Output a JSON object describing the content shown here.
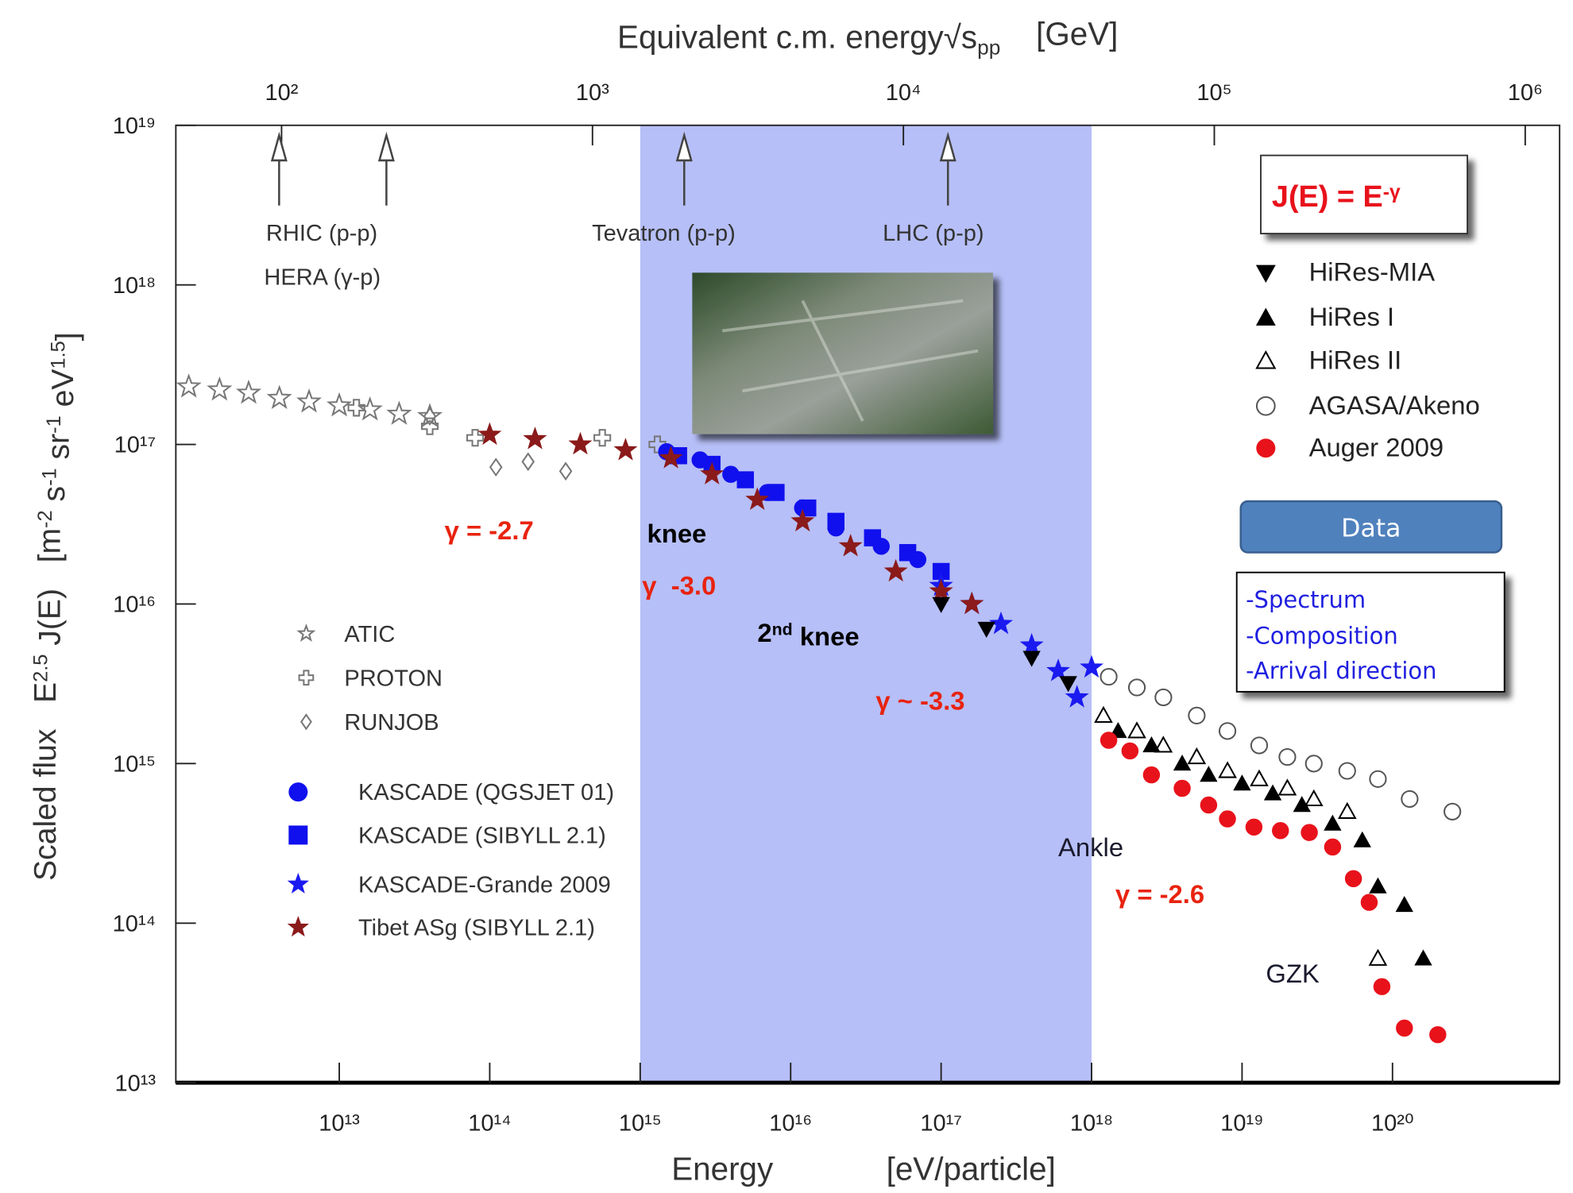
{
  "chart_data": {
    "type": "scatter",
    "title": [
      {
        "text": "Equivalent c.m. energy"
      },
      {
        "text": "√s"
      },
      {
        "text": "pp",
        "sub": true
      },
      {
        "text": "    [GeV]"
      }
    ],
    "x_label": [
      "Energy",
      "[eV/particle]"
    ],
    "y_label": [
      {
        "text": "Scaled flux   E"
      },
      {
        "text": "2.5",
        "sup": true
      },
      {
        "text": " J(E)   [m"
      },
      {
        "text": "-2",
        "sup": true
      },
      {
        "text": " s"
      },
      {
        "text": "-1",
        "sup": true
      },
      {
        "text": " sr"
      },
      {
        "text": "-1",
        "sup": true
      },
      {
        "text": " eV"
      },
      {
        "text": "1.5",
        "sup": true
      },
      {
        "text": "]"
      }
    ],
    "log_x": true,
    "log_y": true,
    "xlim": [
      820000000000.0,
      1.29e+21
    ],
    "ylim": [
      10000000000000.0,
      1e+19
    ],
    "x2lim": [
      45.7,
      1290000.0
    ],
    "xticks": [
      {
        "value": 10000000000000.0,
        "label": "10¹³"
      },
      {
        "value": 100000000000000.0,
        "label": "10¹⁴"
      },
      {
        "value": 1000000000000000.0,
        "label": "10¹⁵"
      },
      {
        "value": 1e+16,
        "label": "10¹⁶"
      },
      {
        "value": 1e+17,
        "label": "10¹⁷"
      },
      {
        "value": 1e+18,
        "label": "10¹⁸"
      },
      {
        "value": 1e+19,
        "label": "10¹⁹"
      },
      {
        "value": 1e+20,
        "label": "10²⁰"
      }
    ],
    "yticks": [
      {
        "value": 10000000000000.0,
        "label": "10¹³"
      },
      {
        "value": 100000000000000.0,
        "label": "10¹⁴"
      },
      {
        "value": 1000000000000000.0,
        "label": "10¹⁵"
      },
      {
        "value": 1e+16,
        "label": "10¹⁶"
      },
      {
        "value": 1e+17,
        "label": "10¹⁷"
      },
      {
        "value": 1e+18,
        "label": "10¹⁸"
      },
      {
        "value": 1e+19,
        "label": "10¹⁹"
      }
    ],
    "x2ticks": [
      {
        "value": 100,
        "label": "10²"
      },
      {
        "value": 1000,
        "label": "10³"
      },
      {
        "value": 10000,
        "label": "10⁴"
      },
      {
        "value": 100000,
        "label": "10⁵"
      },
      {
        "value": 1000000,
        "label": "10⁶"
      }
    ],
    "highlight_range": [
      1000000000000000.0,
      1e+18
    ],
    "highlight_color": "#b6bff7",
    "series": [
      {
        "name": "ATIC",
        "legend": "left",
        "marker": "star",
        "filled": false,
        "color": "#777777",
        "x": [
          1000000000000.0,
          1600000000000.0,
          2500000000000.0,
          4000000000000.0,
          6300000000000.0,
          10000000000000.0,
          16000000000000.0,
          25000000000000.0,
          40000000000000.0
        ],
        "values": [
          2.3e+17,
          2.2e+17,
          2.1e+17,
          1.95e+17,
          1.85e+17,
          1.75e+17,
          1.65e+17,
          1.55e+17,
          1.5e+17
        ]
      },
      {
        "name": "PROTON",
        "legend": "left",
        "marker": "cross",
        "filled": false,
        "color": "#777777",
        "x": [
          13000000000000.0,
          40000000000000.0,
          80000000000000.0,
          560000000000000.0,
          1300000000000000.0
        ],
        "values": [
          1.7e+17,
          1.3e+17,
          1.1e+17,
          1.1e+17,
          1e+17
        ]
      },
      {
        "name": "RUNJOB",
        "legend": "left",
        "marker": "diamond",
        "filled": false,
        "color": "#777777",
        "x": [
          40000000000000.0,
          110000000000000.0,
          180000000000000.0,
          320000000000000.0
        ],
        "values": [
          1.5e+17,
          7.2e+16,
          7.8e+16,
          6.8e+16
        ]
      },
      {
        "name": "KASCADE (QGSJET 01)",
        "legend": "left",
        "marker": "circle",
        "filled": true,
        "color": "#1010ee",
        "x": [
          1500000000000000.0,
          2500000000000000.0,
          4000000000000000.0,
          7000000000000000.0,
          1.2e+16,
          2e+16,
          4e+16,
          7e+16
        ],
        "values": [
          9e+16,
          8e+16,
          6.5e+16,
          5e+16,
          4e+16,
          3e+16,
          2.3e+16,
          1.9e+16
        ]
      },
      {
        "name": "KASCADE (SIBYLL 2.1)",
        "legend": "left",
        "marker": "square",
        "filled": true,
        "color": "#1010ee",
        "x": [
          1800000000000000.0,
          3000000000000000.0,
          5000000000000000.0,
          8000000000000000.0,
          1.3e+16,
          2e+16,
          3.5e+16,
          6e+16,
          1e+17
        ],
        "values": [
          8.5e+16,
          7.5e+16,
          6e+16,
          5e+16,
          4e+16,
          3.3e+16,
          2.6e+16,
          2.1e+16,
          1.6e+16
        ]
      },
      {
        "name": "KASCADE-Grande 2009",
        "legend": "left",
        "marker": "star",
        "filled": true,
        "color": "#1a1af0",
        "x": [
          1e+17,
          1.6e+17,
          2.5e+17,
          4e+17,
          6e+17,
          8e+17,
          1e+18
        ],
        "values": [
          1.3e+16,
          1e+16,
          7500000000000000.0,
          5500000000000000.0,
          3800000000000000.0,
          2600000000000000.0,
          4000000000000000.0
        ]
      },
      {
        "name": "Tibet ASg (SIBYLL 2.1)",
        "legend": "left",
        "marker": "star",
        "filled": true,
        "color": "#8b1a1a",
        "x": [
          100000000000000.0,
          200000000000000.0,
          400000000000000.0,
          800000000000000.0,
          1600000000000000.0,
          3000000000000000.0,
          6000000000000000.0,
          1.2e+16,
          2.5e+16,
          5e+16,
          1e+17,
          1.6e+17
        ],
        "values": [
          1.15e+17,
          1.08e+17,
          1e+17,
          9.2e+16,
          8.2e+16,
          6.5e+16,
          4.5e+16,
          3.3e+16,
          2.3e+16,
          1.6e+16,
          1.2e+16,
          1e+16
        ]
      },
      {
        "name": "HiRes-MIA",
        "legend": "right",
        "marker": "triangle-down",
        "filled": true,
        "color": "#000000",
        "x": [
          1e+17,
          2e+17,
          4e+17,
          7e+17
        ],
        "values": [
          1e+16,
          7000000000000000.0,
          4600000000000000.0,
          3200000000000000.0
        ]
      },
      {
        "name": "HiRes I",
        "legend": "right",
        "marker": "triangle-up",
        "filled": true,
        "color": "#000000",
        "x": [
          1.5e+18,
          2.5e+18,
          4e+18,
          6e+18,
          1e+19,
          1.6e+19,
          2.5e+19,
          4e+19,
          6.3e+19,
          8e+19,
          1.2e+20,
          1.6e+20
        ],
        "values": [
          1600000000000000.0,
          1300000000000000.0,
          1000000000000000.0,
          850000000000000.0,
          750000000000000.0,
          650000000000000.0,
          550000000000000.0,
          420000000000000.0,
          330000000000000.0,
          170000000000000.0,
          130000000000000.0,
          60000000000000.0
        ]
      },
      {
        "name": "HiRes II",
        "legend": "right",
        "marker": "triangle-up",
        "filled": false,
        "color": "#000000",
        "x": [
          1.2e+18,
          2e+18,
          3e+18,
          5e+18,
          8e+18,
          1.3e+19,
          2e+19,
          3e+19,
          5e+19,
          8e+19
        ],
        "values": [
          2000000000000000.0,
          1600000000000000.0,
          1300000000000000.0,
          1100000000000000.0,
          900000000000000.0,
          800000000000000.0,
          700000000000000.0,
          600000000000000.0,
          500000000000000.0,
          60000000000000.0
        ]
      },
      {
        "name": "AGASA/Akeno",
        "legend": "right",
        "marker": "circle",
        "filled": false,
        "color": "#555555",
        "x": [
          1.3e+18,
          2e+18,
          3e+18,
          5e+18,
          8e+18,
          1.3e+19,
          2e+19,
          3e+19,
          5e+19,
          8e+19,
          1.3e+20,
          2.5e+20
        ],
        "values": [
          3500000000000000.0,
          3000000000000000.0,
          2600000000000000.0,
          2000000000000000.0,
          1600000000000000.0,
          1300000000000000.0,
          1100000000000000.0,
          1000000000000000.0,
          900000000000000.0,
          800000000000000.0,
          600000000000000.0,
          500000000000000.0
        ]
      },
      {
        "name": "Auger 2009",
        "legend": "right",
        "marker": "circle",
        "filled": true,
        "color": "#e8121b",
        "x": [
          1.3e+18,
          1.8e+18,
          2.5e+18,
          4e+18,
          6e+18,
          8e+18,
          1.2e+19,
          1.8e+19,
          2.8e+19,
          4e+19,
          5.5e+19,
          7e+19,
          8.5e+19,
          1.2e+20,
          2e+20
        ],
        "values": [
          1400000000000000.0,
          1200000000000000.0,
          850000000000000.0,
          700000000000000.0,
          550000000000000.0,
          450000000000000.0,
          400000000000000.0,
          380000000000000.0,
          370000000000000.0,
          300000000000000.0,
          190000000000000.0,
          135000000000000.0,
          40000000000000.0,
          22000000000000.0,
          20000000000000.0
        ]
      }
    ],
    "annotations": {
      "gamma_27": "γ = -2.7",
      "knee": "knee",
      "gamma_30": "γ  -3.0",
      "second_knee": [
        {
          "text": "2"
        },
        {
          "text": "nd",
          "sup": true
        },
        {
          "text": " knee"
        }
      ],
      "gamma_33": "γ ~ -3.3",
      "ankle": "Ankle",
      "gamma_26": "γ = -2.6",
      "gzk": "GZK",
      "rhic": "RHIC (p-p)",
      "hera": "HERA (γ-p)",
      "tevatron": "Tevatron (p-p)",
      "lhc": "LHC (p-p)"
    },
    "formula": [
      {
        "text": "J(E) = E"
      },
      {
        "text": "-γ",
        "sup": true
      }
    ],
    "data_button": "Data",
    "data_list": [
      "-Spectrum",
      "-Composition",
      "-Arrival direction"
    ]
  }
}
